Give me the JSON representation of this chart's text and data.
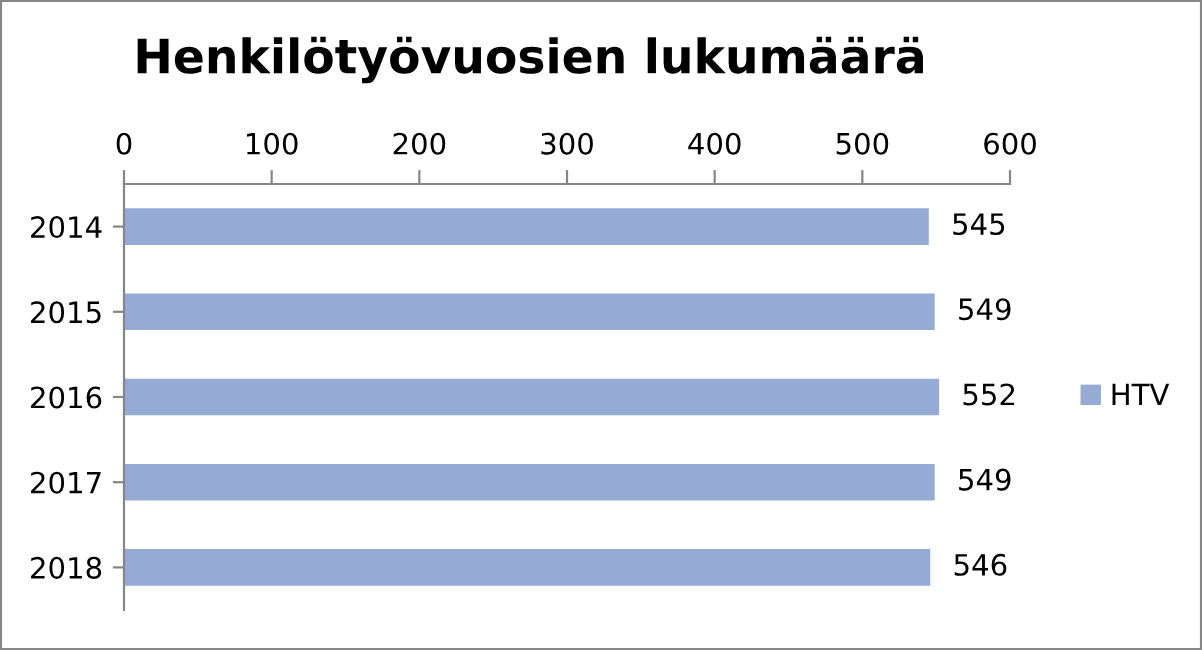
{
  "chart_data": {
    "type": "bar",
    "orientation": "horizontal",
    "title": "Henkilötyövuosien lukumäärä",
    "categories": [
      "2014",
      "2015",
      "2016",
      "2017",
      "2018"
    ],
    "series": [
      {
        "name": "HTV",
        "color": "#95abd3",
        "values": [
          545,
          549,
          552,
          549,
          546
        ]
      }
    ],
    "xlim": [
      0,
      600
    ],
    "xticks": [
      0,
      100,
      200,
      300,
      400,
      500,
      600
    ],
    "data_labels": true,
    "legend": "right",
    "grid": false
  }
}
